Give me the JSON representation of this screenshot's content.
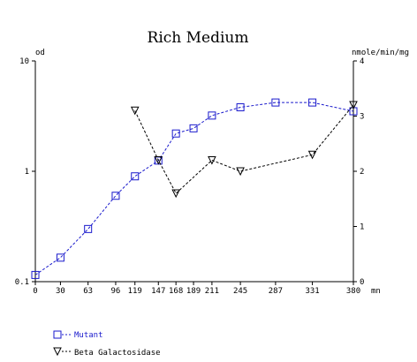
{
  "chart_data": {
    "type": "line",
    "title": "Rich Medium",
    "left_axis": {
      "label": "od",
      "scale": "log",
      "range": [
        0.1,
        10
      ],
      "ticks": [
        {
          "value": 0.1,
          "label": "0.1"
        },
        {
          "value": 1,
          "label": "1"
        },
        {
          "value": 10,
          "label": "10"
        }
      ]
    },
    "right_axis": {
      "label": "nmole/min/mg",
      "scale": "linear",
      "range": [
        0,
        4
      ],
      "ticks": [
        {
          "value": 0,
          "label": "0"
        },
        {
          "value": 1,
          "label": "1"
        },
        {
          "value": 2,
          "label": "2"
        },
        {
          "value": 3,
          "label": "3"
        },
        {
          "value": 4,
          "label": "4"
        }
      ]
    },
    "x_axis": {
      "label": "mn",
      "range": [
        0,
        380
      ],
      "ticks": [
        0,
        30,
        63,
        96,
        119,
        147,
        168,
        189,
        211,
        245,
        287,
        331,
        380
      ]
    },
    "grid": false,
    "legend_position": "bottom-left",
    "series": [
      {
        "name": "Mutant",
        "axis": "left",
        "marker": "square",
        "line_style": "dashed",
        "color": "#1a1acc",
        "points": [
          [
            0,
            0.115
          ],
          [
            30,
            0.165
          ],
          [
            63,
            0.3
          ],
          [
            96,
            0.6
          ],
          [
            119,
            0.9
          ],
          [
            147,
            1.25
          ],
          [
            168,
            2.2
          ],
          [
            189,
            2.45
          ],
          [
            211,
            3.2
          ],
          [
            245,
            3.8
          ],
          [
            287,
            4.2
          ],
          [
            331,
            4.2
          ],
          [
            380,
            3.5
          ]
        ]
      },
      {
        "name": "Beta Galactosidase",
        "axis": "right",
        "marker": "triangle-down",
        "line_style": "dashed",
        "color": "#000000",
        "points": [
          [
            119,
            3.1
          ],
          [
            147,
            2.2
          ],
          [
            168,
            1.6
          ],
          [
            211,
            2.2
          ],
          [
            245,
            2.0
          ],
          [
            331,
            2.3
          ],
          [
            380,
            3.2
          ]
        ]
      }
    ]
  }
}
